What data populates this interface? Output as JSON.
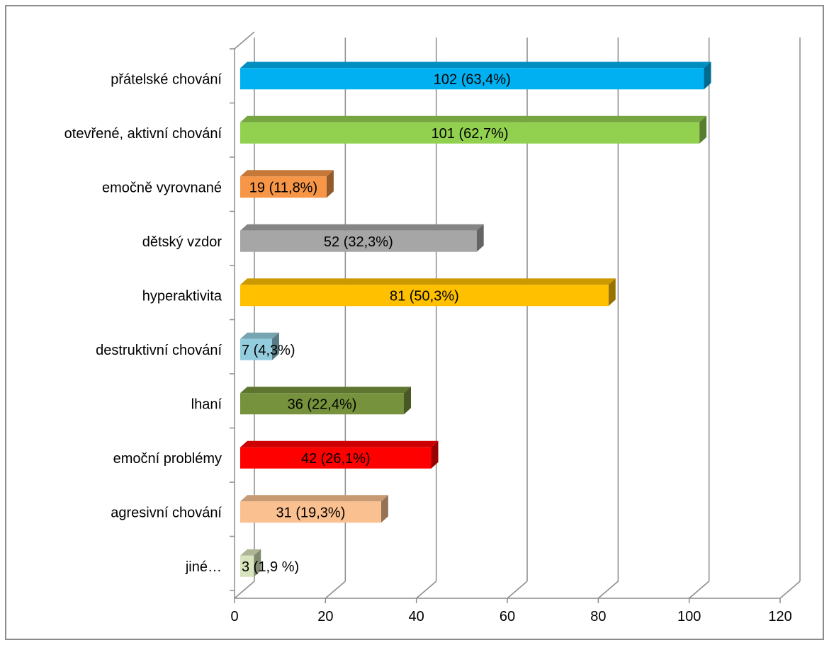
{
  "chart_data": {
    "type": "bar",
    "orientation": "horizontal",
    "categories": [
      "přátelské chování",
      "otevřené, aktivní chování",
      "emočně vyrovnané",
      "dětský vzdor",
      "hyperaktivita",
      "destruktivní chování",
      "lhaní",
      "emoční problémy",
      "agresivní chování",
      "jiné…"
    ],
    "values": [
      102,
      101,
      19,
      52,
      81,
      7,
      36,
      42,
      31,
      3
    ],
    "data_labels": [
      "102 (63,4%)",
      "101 (62,7%)",
      "19 (11,8%)",
      "52 (32,3%)",
      "81 (50,3%)",
      "7 (4,3%)",
      "36 (22,4%)",
      "42 (26,1%)",
      "31 (19,3%)",
      "3 (1,9 %)"
    ],
    "colors": [
      "#00b0f0",
      "#92d050",
      "#f79646",
      "#a6a6a6",
      "#ffc000",
      "#93cddd",
      "#76923c",
      "#ff0000",
      "#fac090",
      "#d7e4bd"
    ],
    "xlim": [
      0,
      120
    ],
    "xticks": [
      0,
      20,
      40,
      60,
      80,
      100,
      120
    ],
    "tick_labels": [
      "0",
      "20",
      "40",
      "60",
      "80",
      "100",
      "120"
    ],
    "grid": true,
    "legend": "none",
    "style": "3d"
  }
}
